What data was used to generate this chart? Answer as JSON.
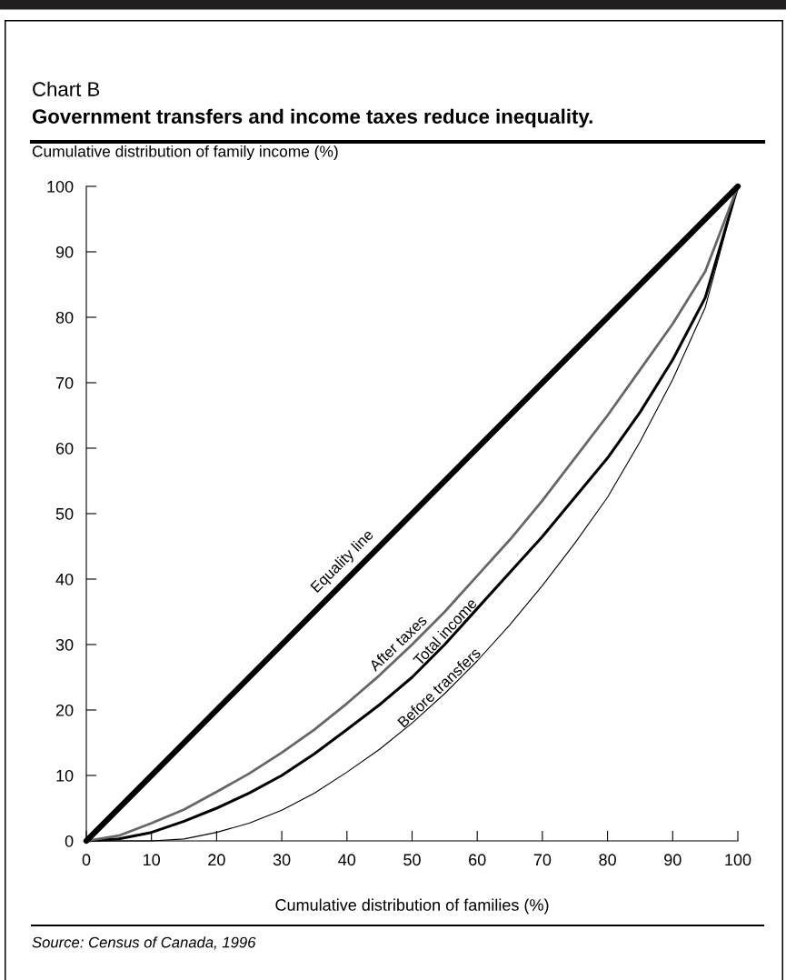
{
  "chart_data": {
    "type": "line",
    "title": "Government transfers and income taxes reduce inequality.",
    "subtitle": "Chart B",
    "ylabel": "Cumulative distribution of family income (%)",
    "xlabel": "Cumulative distribution of families (%)",
    "x": [
      0,
      5,
      10,
      15,
      20,
      25,
      30,
      35,
      40,
      45,
      50,
      55,
      60,
      65,
      70,
      75,
      80,
      85,
      90,
      95,
      100
    ],
    "series": [
      {
        "name": "Equality line",
        "color": "#000000",
        "x": [
          0,
          100
        ],
        "values": [
          0,
          100
        ]
      },
      {
        "name": "After taxes",
        "color": "#666666",
        "values": [
          0,
          0.8,
          2.7,
          4.8,
          7.5,
          10.3,
          13.5,
          17,
          21,
          25.3,
          30,
          35,
          40.5,
          46,
          52,
          58.5,
          65,
          72,
          79,
          87,
          100
        ]
      },
      {
        "name": "Total income",
        "color": "#000000",
        "values": [
          0,
          0.3,
          1.3,
          3,
          5,
          7.3,
          10,
          13.3,
          17,
          20.8,
          25,
          30,
          35.5,
          41,
          46.5,
          52.5,
          58.5,
          65.5,
          73.5,
          83,
          100
        ]
      },
      {
        "name": "Before transfers",
        "color": "#000000",
        "values": [
          0,
          0,
          0,
          0.3,
          1.3,
          2.7,
          4.7,
          7.3,
          10.5,
          14,
          18,
          22.5,
          27.5,
          33,
          39,
          45.5,
          52.5,
          61,
          70.5,
          81.5,
          100
        ]
      }
    ],
    "xlim": [
      0,
      100
    ],
    "ylim": [
      0,
      100
    ],
    "xticks": [
      0,
      10,
      20,
      30,
      40,
      50,
      60,
      70,
      80,
      90,
      100
    ],
    "yticks": [
      0,
      10,
      20,
      30,
      40,
      50,
      60,
      70,
      80,
      90,
      100
    ],
    "grid": false,
    "legend": false,
    "annotations": [
      "Source: Census of Canada, 1996"
    ]
  }
}
